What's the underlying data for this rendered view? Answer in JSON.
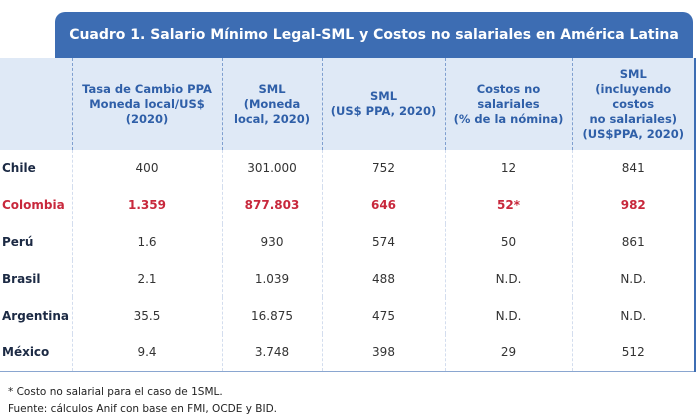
{
  "title": "Cuadro 1. Salario Mínimo Legal-SML y Costos no salariales en América Latina",
  "table": {
    "columns": [
      [
        "Tasa de Cambio PPA",
        "Moneda local/US$",
        "(2020)"
      ],
      [
        "SML",
        "(Moneda",
        "local, 2020)"
      ],
      [
        "SML",
        "(US$ PPA, 2020)"
      ],
      [
        "Costos no",
        "salariales",
        "(% de la nómina)"
      ],
      [
        "SML",
        "(incluyendo costos",
        "no salariales)",
        "(US$PPA, 2020)"
      ]
    ],
    "rows": [
      [
        "Chile",
        "400",
        "301.000",
        "752",
        "12",
        "841"
      ],
      [
        "Colombia",
        "1.359",
        "877.803",
        "646",
        "52*",
        "982"
      ],
      [
        "Perú",
        "1.6",
        "930",
        "574",
        "50",
        "861"
      ],
      [
        "Brasil",
        "2.1",
        "1.039",
        "488",
        "N.D.",
        "N.D."
      ],
      [
        "Argentina",
        "35.5",
        "16.875",
        "475",
        "N.D.",
        "N.D."
      ],
      [
        "México",
        "9.4",
        "3.748",
        "398",
        "29",
        "512"
      ]
    ]
  },
  "footnotes": [
    "* Costo no salarial para el caso de 1SML.",
    "Fuente: cálculos Anif con base en FMI, OCDE y BID."
  ]
}
